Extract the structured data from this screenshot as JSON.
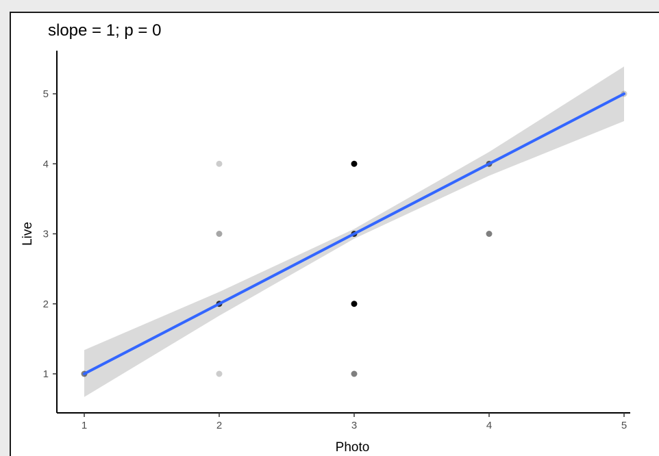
{
  "chart_data": {
    "type": "scatter",
    "title": "slope = 1; p = 0",
    "xlabel": "Photo",
    "ylabel": "Live",
    "xlim": [
      0.9,
      5.1
    ],
    "ylim": [
      0.45,
      5.55
    ],
    "x_ticks": [
      "1",
      "2",
      "3",
      "4",
      "5"
    ],
    "y_ticks": [
      "1",
      "2",
      "3",
      "4",
      "5"
    ],
    "grid": false,
    "legend": "none",
    "points": [
      {
        "x": 1,
        "y": 1,
        "opacity": 0.5
      },
      {
        "x": 2,
        "y": 1,
        "opacity": 0.2
      },
      {
        "x": 2,
        "y": 2,
        "opacity": 0.8
      },
      {
        "x": 2,
        "y": 3,
        "opacity": 0.35
      },
      {
        "x": 2,
        "y": 4,
        "opacity": 0.2
      },
      {
        "x": 3,
        "y": 1,
        "opacity": 0.5
      },
      {
        "x": 3,
        "y": 2,
        "opacity": 1.0
      },
      {
        "x": 3,
        "y": 3,
        "opacity": 0.8
      },
      {
        "x": 3,
        "y": 4,
        "opacity": 1.0
      },
      {
        "x": 4,
        "y": 3,
        "opacity": 0.5
      },
      {
        "x": 4,
        "y": 4,
        "opacity": 0.6
      },
      {
        "x": 5,
        "y": 5,
        "opacity": 0.2
      }
    ],
    "fit_line": {
      "x": [
        1,
        5
      ],
      "y": [
        1,
        5
      ],
      "ci_upper": [
        {
          "x": 1,
          "y": 1.34
        },
        {
          "x": 2,
          "y": 2.17
        },
        {
          "x": 3,
          "y": 3.07
        },
        {
          "x": 4,
          "y": 4.17
        },
        {
          "x": 5,
          "y": 5.39
        }
      ],
      "ci_lower": [
        {
          "x": 1,
          "y": 0.67
        },
        {
          "x": 2,
          "y": 1.83
        },
        {
          "x": 3,
          "y": 2.93
        },
        {
          "x": 4,
          "y": 3.83
        },
        {
          "x": 5,
          "y": 4.61
        }
      ]
    },
    "colors": {
      "line": "#3366ff",
      "ribbon": "#d6d6d6",
      "points": "#000000",
      "panel_bg": "#ebebeb"
    }
  }
}
